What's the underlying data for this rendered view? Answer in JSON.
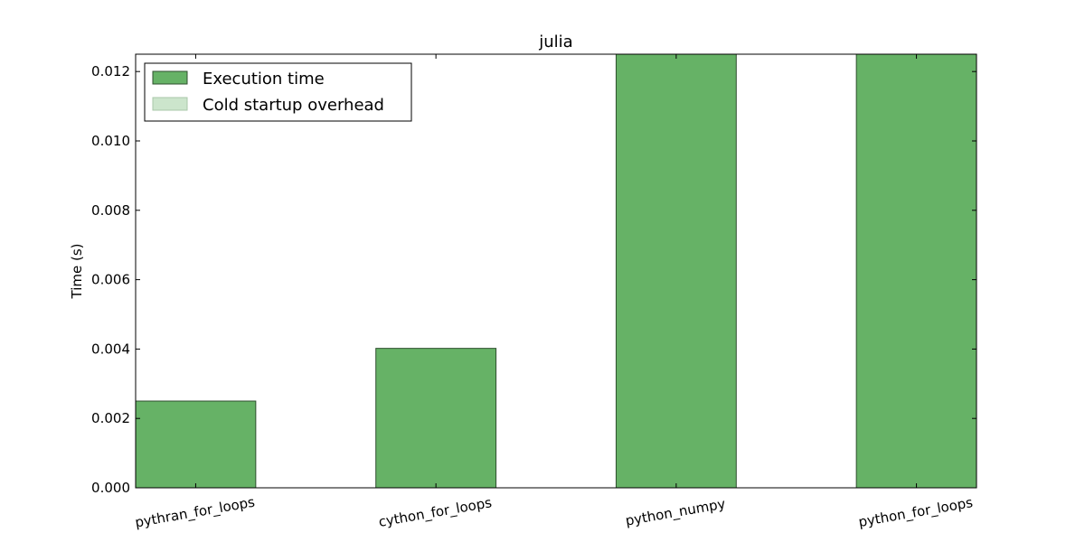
{
  "chart_data": {
    "type": "bar",
    "title": "julia",
    "xlabel": "",
    "ylabel": "Time (s)",
    "ylim": [
      0,
      0.0125
    ],
    "yticks": [
      "0.000",
      "0.002",
      "0.004",
      "0.006",
      "0.008",
      "0.010",
      "0.012"
    ],
    "ytick_values": [
      0,
      0.002,
      0.004,
      0.006,
      0.008,
      0.01,
      0.012
    ],
    "categories": [
      "pythran_for_loops",
      "cython_for_loops",
      "python_numpy",
      "python_for_loops"
    ],
    "xtick_rotation_deg": 10,
    "series": [
      {
        "name": "Execution time",
        "values": [
          0.0025,
          0.00402,
          0.0125,
          0.0125
        ],
        "color": "#66b266"
      },
      {
        "name": "Cold startup overhead",
        "values": [
          0,
          0,
          0,
          0
        ],
        "color": "#cce5cc"
      }
    ],
    "legend_position": "top-left",
    "grid": false,
    "bar_edge_color": "#2f4f2f"
  }
}
